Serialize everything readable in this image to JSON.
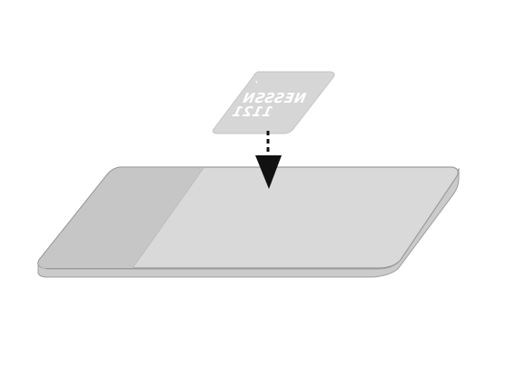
{
  "card": {
    "line1": "NESSSN",
    "line2": "1121",
    "mark": "´",
    "text_mirrored": true,
    "fill_color": "#d6d6d6",
    "text_color": "#ffffff"
  },
  "arrow": {
    "style": "dashed",
    "direction": "down",
    "color": "#111111"
  },
  "surface": {
    "top_color": "#d9d9d9",
    "edge_color": "#c9c9c9",
    "shaded_region_color": "#c6c6c6",
    "outline_color": "#9a9a9a"
  }
}
